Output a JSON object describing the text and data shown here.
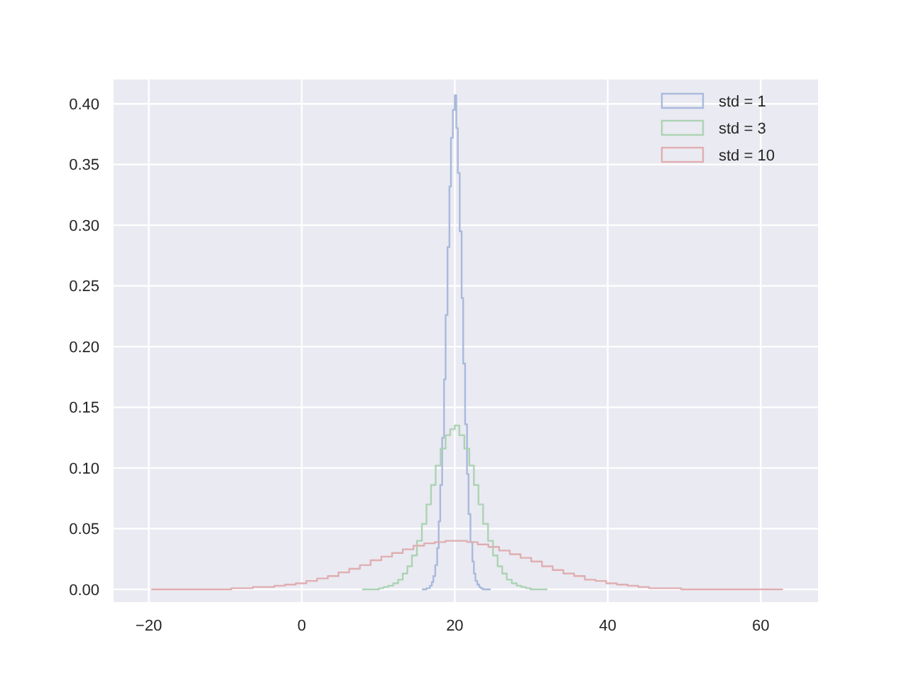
{
  "chart_data": {
    "type": "step",
    "series": [
      {
        "name": "std = 1",
        "color": "#a9b9dc",
        "x": [
          15.7,
          15.9,
          16.2,
          16.4,
          16.6,
          16.9,
          17.1,
          17.3,
          17.6,
          17.8,
          18,
          18.2,
          18.5,
          18.7,
          18.9,
          19.2,
          19.4,
          19.6,
          19.9,
          20.1,
          20.3,
          20.5,
          20.8,
          21,
          21.2,
          21.5,
          21.7,
          21.9,
          22.2,
          22.4,
          22.6,
          22.8,
          23.1,
          23.3,
          23.5,
          23.8,
          24,
          24.2,
          24.5,
          24.7
        ],
        "values": [
          0,
          0,
          0,
          0.001,
          0.001,
          0.003,
          0.006,
          0.011,
          0.02,
          0.034,
          0.056,
          0.086,
          0.125,
          0.173,
          0.226,
          0.282,
          0.332,
          0.372,
          0.395,
          0.407,
          0.38,
          0.343,
          0.295,
          0.24,
          0.186,
          0.136,
          0.095,
          0.062,
          0.039,
          0.023,
          0.013,
          0.007,
          0.004,
          0.002,
          0.001,
          0,
          0,
          0,
          0,
          0
        ]
      },
      {
        "name": "std = 3",
        "color": "#acd3b4",
        "x": [
          7.9,
          8.5,
          9.2,
          9.8,
          10.4,
          11,
          11.6,
          12.3,
          12.9,
          13.5,
          14.1,
          14.7,
          15.4,
          16,
          16.6,
          17.2,
          17.8,
          18.5,
          19.1,
          19.7,
          20.3,
          20.9,
          21.6,
          22.2,
          22.8,
          23.4,
          24,
          24.7,
          25.3,
          25.9,
          26.5,
          27.1,
          27.8,
          28.4,
          29,
          29.6,
          30.2,
          30.9,
          31.5,
          32.1
        ],
        "values": [
          0,
          0,
          0,
          0,
          0.001,
          0.002,
          0.003,
          0.005,
          0.008,
          0.013,
          0.019,
          0.028,
          0.04,
          0.054,
          0.07,
          0.086,
          0.102,
          0.116,
          0.127,
          0.132,
          0.135,
          0.127,
          0.116,
          0.102,
          0.086,
          0.07,
          0.054,
          0.04,
          0.028,
          0.019,
          0.013,
          0.008,
          0.005,
          0.003,
          0.002,
          0.001,
          0,
          0,
          0,
          0
        ]
      },
      {
        "name": "std = 10",
        "color": "#e0aeb1",
        "x": [
          -19.7,
          -18.3,
          -16.9,
          -15.5,
          -14.1,
          -12.7,
          -11.3,
          -9.9,
          -8.5,
          -7.1,
          -5.7,
          -4.3,
          -2.9,
          -1.5,
          -0.1,
          1.3,
          2.7,
          4.1,
          5.5,
          6.9,
          8.3,
          9.7,
          11.1,
          12.5,
          13.9,
          15.3,
          16.7,
          18.1,
          19.5,
          20.9,
          22.3,
          23.7,
          25.1,
          26.5,
          27.9,
          29.3,
          30.7,
          32.1,
          33.5,
          34.9,
          36.3,
          37.7,
          39.1,
          40.5,
          41.9,
          43.3,
          44.7,
          46.1,
          47.5,
          48.9,
          50.3,
          51.7,
          53.1,
          54.5,
          55.9,
          57.3,
          58.7,
          60.1,
          61.5,
          62.9
        ],
        "values": [
          0,
          0,
          0,
          0,
          0,
          0,
          0,
          0,
          0.001,
          0.001,
          0.002,
          0.002,
          0.003,
          0.004,
          0.005,
          0.007,
          0.009,
          0.011,
          0.014,
          0.017,
          0.02,
          0.024,
          0.027,
          0.03,
          0.033,
          0.036,
          0.038,
          0.039,
          0.04,
          0.04,
          0.039,
          0.037,
          0.035,
          0.032,
          0.029,
          0.026,
          0.023,
          0.019,
          0.016,
          0.013,
          0.011,
          0.008,
          0.007,
          0.005,
          0.004,
          0.003,
          0.002,
          0.001,
          0.001,
          0.001,
          0,
          0,
          0,
          0,
          0,
          0,
          0,
          0,
          0,
          0
        ]
      }
    ],
    "xlim": [
      -24.6,
      67.5
    ],
    "ylim": [
      -0.0105,
      0.42
    ],
    "xticks": [
      {
        "value": -20,
        "label": "−20"
      },
      0,
      20,
      40,
      60
    ],
    "yticks": [
      {
        "value": 0,
        "label": "0.00"
      },
      {
        "value": 0.05,
        "label": "0.05"
      },
      {
        "value": 0.1,
        "label": "0.10"
      },
      {
        "value": 0.15,
        "label": "0.15"
      },
      {
        "value": 0.2,
        "label": "0.20"
      },
      {
        "value": 0.25,
        "label": "0.25"
      },
      {
        "value": 0.3,
        "label": "0.30"
      },
      {
        "value": 0.35,
        "label": "0.35"
      },
      {
        "value": 0.4,
        "label": "0.40"
      }
    ],
    "grid": true,
    "legend": "top right"
  }
}
